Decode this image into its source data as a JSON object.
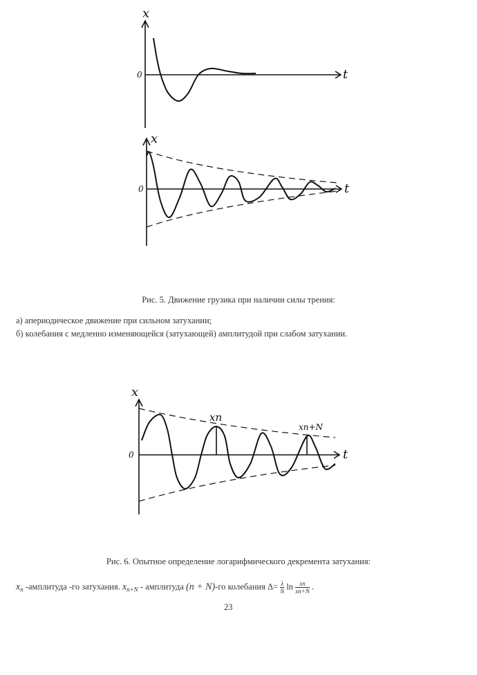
{
  "figure5": {
    "a": {
      "y_axis_label": "x",
      "x_axis_label": "t",
      "origin_label": "0"
    },
    "b": {
      "y_axis_label": "x",
      "x_axis_label": "t",
      "origin_label": "0"
    },
    "caption": "Рис. 5. Движение грузика при наличии силы трения:",
    "item_a": "а) апериодическое движение при сильном затухании;",
    "item_b": "б) колебания с медленно изменяющейся (затухающей) амплитудой при слабом затухании."
  },
  "figure6": {
    "y_axis_label": "x",
    "x_axis_label": "t",
    "origin_label": "0",
    "label_xn": "xn",
    "label_xnN": "xn+N",
    "caption": "Рис. 6. Опытное определение логарифмического декремента затухания:"
  },
  "formula_line": {
    "xn_var": "x",
    "xn_sub": "n",
    "text1": " -амплитуда -го затухания. ",
    "xnN_var": "x",
    "xnN_sub": "n+N",
    "text2": " - амплитуда ",
    "paren": "(n + N)",
    "text3": "-го колебания Δ= ",
    "frac1_num": "λ",
    "frac1_den": "N",
    "ln": " ln ",
    "frac2_num": "xn",
    "frac2_den": "xn+N",
    "end": " ."
  },
  "page_number": "23"
}
